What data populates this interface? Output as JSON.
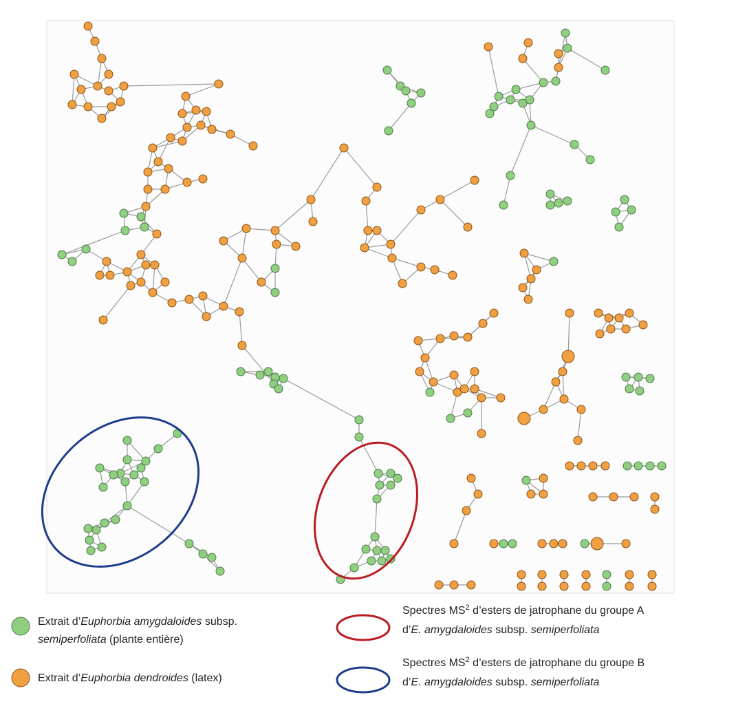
{
  "legend": [
    {
      "lines": [
        [
          {
            "text": "Extrait d’"
          },
          {
            "text": "Euphorbia amygdaloides",
            "italic": true
          },
          {
            "text": " subsp."
          }
        ],
        [
          {
            "text": "semiperfoliata",
            "italic": true
          },
          {
            "text": " (plante entière)"
          }
        ]
      ]
    },
    {
      "lines": [
        [
          {
            "text": "Extrait d’"
          },
          {
            "text": "Euphorbia dendroides",
            "italic": true
          },
          {
            "text": " (latex)"
          }
        ]
      ]
    },
    {
      "lines": [
        [
          {
            "text": "Spectres MS"
          },
          {
            "text": "2",
            "sup": true
          },
          {
            "text": " d’esters de jatrophane du groupe A"
          }
        ],
        [
          {
            "text": "d’"
          },
          {
            "text": "E. amygdaloides",
            "italic": true
          },
          {
            "text": " subsp. "
          },
          {
            "text": "semiperfoliata",
            "italic": true
          }
        ]
      ]
    },
    {
      "lines": [
        [
          {
            "text": "Spectres MS"
          },
          {
            "text": "2",
            "sup": true
          },
          {
            "text": " d’esters de jatrophane du groupe B"
          }
        ],
        [
          {
            "text": "d’"
          },
          {
            "text": "E. amygdaloides",
            "italic": true
          },
          {
            "text": " subsp. "
          },
          {
            "text": "semiperfoliata",
            "italic": true
          }
        ]
      ]
    }
  ]
}
